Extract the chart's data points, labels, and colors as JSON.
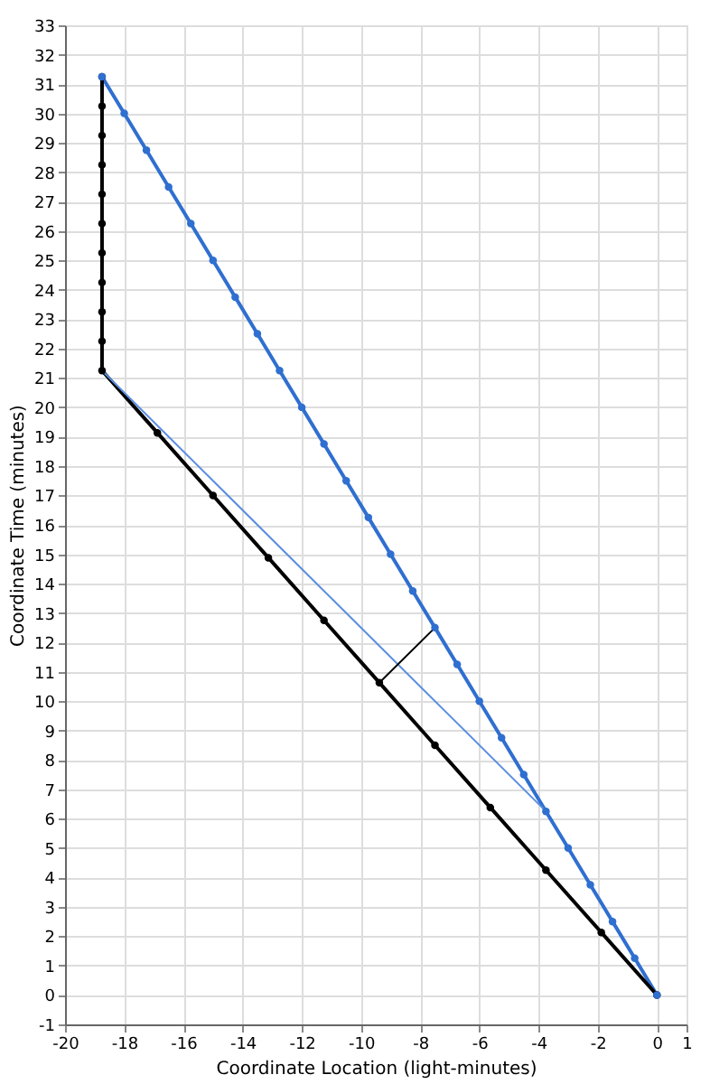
{
  "chart_data": {
    "type": "line",
    "xlabel": "Coordinate Location (light-minutes)",
    "ylabel": "Coordinate Time (minutes)",
    "xlim": [
      -20,
      1
    ],
    "xticks": [
      -20,
      -18,
      -16,
      -14,
      -12,
      -10,
      -8,
      -6,
      -4,
      -2,
      0,
      1
    ],
    "ylim": [
      -1,
      33
    ],
    "yticks": [
      -1,
      0,
      1,
      2,
      3,
      4,
      5,
      6,
      7,
      8,
      9,
      10,
      11,
      12,
      13,
      14,
      15,
      16,
      17,
      18,
      19,
      20,
      21,
      22,
      23,
      24,
      25,
      26,
      27,
      28,
      29,
      30,
      31,
      32,
      33
    ],
    "grid": true,
    "series": [
      {
        "color": "#2f6fd0",
        "marker": "circle",
        "x": [
          0,
          -0.75,
          -1.5,
          -2.25,
          -3,
          -3.75,
          -4.5,
          -5.25,
          -6,
          -6.75,
          -7.5,
          -8.25,
          -9,
          -9.75,
          -10.5,
          -11.25,
          -12,
          -12.75,
          -13.5,
          -14.25,
          -15,
          -15.75,
          -16.5,
          -17.25,
          -18,
          -18.75
        ],
        "values": [
          0,
          1.25,
          2.5,
          3.75,
          5,
          6.25,
          7.5,
          8.75,
          10,
          11.25,
          12.5,
          13.75,
          15,
          16.25,
          17.5,
          18.75,
          20,
          21.25,
          22.5,
          23.75,
          25,
          26.25,
          27.5,
          28.75,
          30,
          31.25
        ]
      },
      {
        "color": "#000000",
        "marker": "circle",
        "x": [
          0,
          -1.88,
          -3.75,
          -5.63,
          -7.5,
          -9.38,
          -11.25,
          -13.13,
          -15,
          -16.88,
          -18.75,
          -18.75,
          -18.75,
          -18.75,
          -18.75,
          -18.75,
          -18.75,
          -18.75,
          -18.75,
          -18.75,
          -18.75
        ],
        "values": [
          0,
          2.13,
          4.25,
          6.38,
          8.5,
          10.63,
          12.75,
          14.88,
          17,
          19.13,
          21.25,
          22.25,
          23.25,
          24.25,
          25.25,
          26.25,
          27.25,
          28.25,
          29.25,
          30.25,
          31.25
        ]
      },
      {
        "color": "#5b8ee0",
        "marker": "none",
        "x": [
          -3.75,
          -18.75
        ],
        "values": [
          6.25,
          21.25
        ]
      },
      {
        "color": "#000000",
        "marker": "none",
        "x": [
          -7.5,
          -9.38
        ],
        "values": [
          12.5,
          10.63
        ]
      }
    ]
  }
}
